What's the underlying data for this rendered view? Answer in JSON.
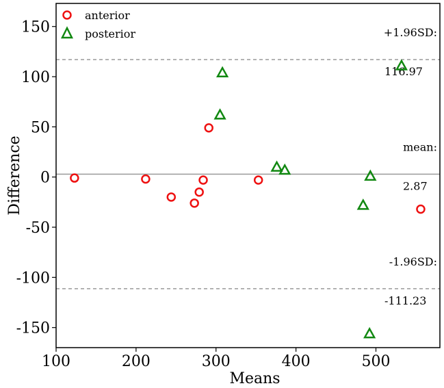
{
  "chart_data": {
    "type": "scatter",
    "xlabel": "Means",
    "ylabel": "Difference",
    "xlim": [
      100,
      580
    ],
    "ylim": [
      -170,
      173
    ],
    "x_ticks": [
      100,
      200,
      300,
      400,
      500
    ],
    "y_ticks": [
      150,
      100,
      50,
      0,
      -50,
      -100,
      -150
    ],
    "x_tick_labels": [
      "100",
      "200",
      "300",
      "400",
      "500"
    ],
    "y_tick_labels": [
      "150",
      "100",
      "50",
      "0",
      "-50",
      "-100",
      "-150"
    ],
    "legend_position": "top-left",
    "series": [
      {
        "name": "anterior",
        "marker": "circle",
        "color": "#ee1111",
        "points": [
          {
            "x": 123,
            "y": -1
          },
          {
            "x": 212,
            "y": -2
          },
          {
            "x": 244,
            "y": -20
          },
          {
            "x": 273,
            "y": -26
          },
          {
            "x": 279,
            "y": -15
          },
          {
            "x": 284,
            "y": -3
          },
          {
            "x": 291,
            "y": 49
          },
          {
            "x": 353,
            "y": -3
          },
          {
            "x": 556,
            "y": -32
          }
        ]
      },
      {
        "name": "posterior",
        "marker": "triangle",
        "color": "#118811",
        "points": [
          {
            "x": 305,
            "y": 62
          },
          {
            "x": 308,
            "y": 104
          },
          {
            "x": 376,
            "y": 10
          },
          {
            "x": 386,
            "y": 7
          },
          {
            "x": 484,
            "y": -28
          },
          {
            "x": 492,
            "y": -156
          },
          {
            "x": 493,
            "y": 1
          },
          {
            "x": 532,
            "y": 111
          }
        ]
      }
    ],
    "reference_lines": [
      {
        "kind": "upper",
        "y": 116.97,
        "style": "dashed",
        "color": "#999999",
        "label1": "+1.96SD:",
        "label2": "116.97"
      },
      {
        "kind": "mean",
        "y": 2.87,
        "style": "solid",
        "color": "#999999",
        "label1": "mean:",
        "label2": "2.87"
      },
      {
        "kind": "lower",
        "y": -111.23,
        "style": "dashed",
        "color": "#999999",
        "label1": "-1.96SD:",
        "label2": "-111.23"
      }
    ],
    "grid": false
  }
}
